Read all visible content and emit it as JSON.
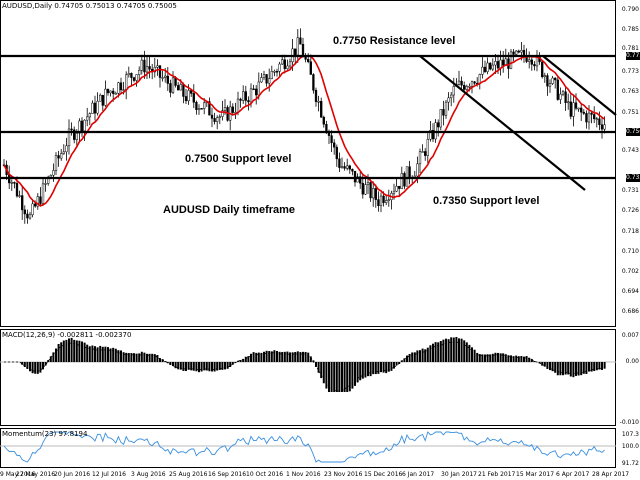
{
  "main_panel": {
    "symbol_info": "AUDUSD,Daily  0.74705 0.75013 0.74705 0.75005",
    "annotations": {
      "resistance": "0.7750 Resistance level",
      "support_0750": "0.7500 Support level",
      "timeframe": "AUDUSD Daily timeframe",
      "support_07350": "0.7350 Support level"
    },
    "price_ticks": [
      "0.790",
      "0.785",
      "0.781",
      "0.777",
      "0.773",
      "0.769",
      "0.763",
      "0.759",
      "0.755",
      "0.751",
      "0.747",
      "0.743",
      "0.739",
      "0.735",
      "0.731",
      "0.726",
      "0.722",
      "0.718",
      "0.714",
      "0.710",
      "0.706",
      "0.702",
      "0.698",
      "0.694",
      "0.690",
      "0.686"
    ],
    "price_boxes": {
      "resistance": "0.775",
      "current": "0.750",
      "support": "0.735"
    },
    "colors": {
      "candle": "#000000",
      "ma": "#e00000",
      "level_line": "#000000"
    }
  },
  "macd_panel": {
    "label": "MACD(12,26,9) -0.002811 -0.002370",
    "ticks": [
      "0.007",
      "0.00",
      "-0.010"
    ]
  },
  "momentum_panel": {
    "label": "Momentum(23) 97.8194",
    "ticks": [
      "107.3",
      "100.0",
      "91.72"
    ],
    "colors": {
      "line": "#3a8fe0",
      "level": "#bbbbbb"
    }
  },
  "date_axis": [
    "9 May 2016",
    "27 May 2016",
    "20 Jun 2016",
    "12 Jul 2016",
    "3 Aug 2016",
    "25 Aug 2016",
    "16 Sep 2016",
    "10 Oct 2016",
    "1 Nov 2016",
    "23 Nov 2016",
    "15 Dec 2016",
    "6 Jan 2017",
    "30 Jan 2017",
    "21 Feb 2017",
    "15 Mar 2017",
    "6 Apr 2017",
    "28 Apr 2017"
  ],
  "chart_data": {
    "type": "candlestick",
    "symbol": "AUDUSD",
    "timeframe": "Daily",
    "ohlc_last": {
      "open": 0.74705,
      "high": 0.75013,
      "low": 0.74705,
      "close": 0.75005
    },
    "horizontal_levels": [
      0.775,
      0.75,
      0.735
    ],
    "approx_close_path": [
      {
        "date": "9 May 2016",
        "close": 0.736
      },
      {
        "date": "27 May 2016",
        "close": 0.718
      },
      {
        "date": "20 Jun 2016",
        "close": 0.745
      },
      {
        "date": "12 Jul 2016",
        "close": 0.76
      },
      {
        "date": "3 Aug 2016",
        "close": 0.77
      },
      {
        "date": "25 Aug 2016",
        "close": 0.76
      },
      {
        "date": "16 Sep 2016",
        "close": 0.752
      },
      {
        "date": "10 Oct 2016",
        "close": 0.763
      },
      {
        "date": "1 Nov 2016",
        "close": 0.777
      },
      {
        "date": "23 Nov 2016",
        "close": 0.737
      },
      {
        "date": "15 Dec 2016",
        "close": 0.724
      },
      {
        "date": "6 Jan 2017",
        "close": 0.735
      },
      {
        "date": "30 Jan 2017",
        "close": 0.762
      },
      {
        "date": "21 Feb 2017",
        "close": 0.769
      },
      {
        "date": "15 Mar 2017",
        "close": 0.774
      },
      {
        "date": "6 Apr 2017",
        "close": 0.755
      },
      {
        "date": "28 Apr 2017",
        "close": 0.75
      }
    ],
    "indicators": [
      "Moving Average (red)",
      "MACD(12,26,9)",
      "Momentum(23)"
    ],
    "macd_values": {
      "main": -0.002811,
      "signal": -0.00237
    },
    "momentum_value": 97.8194
  }
}
